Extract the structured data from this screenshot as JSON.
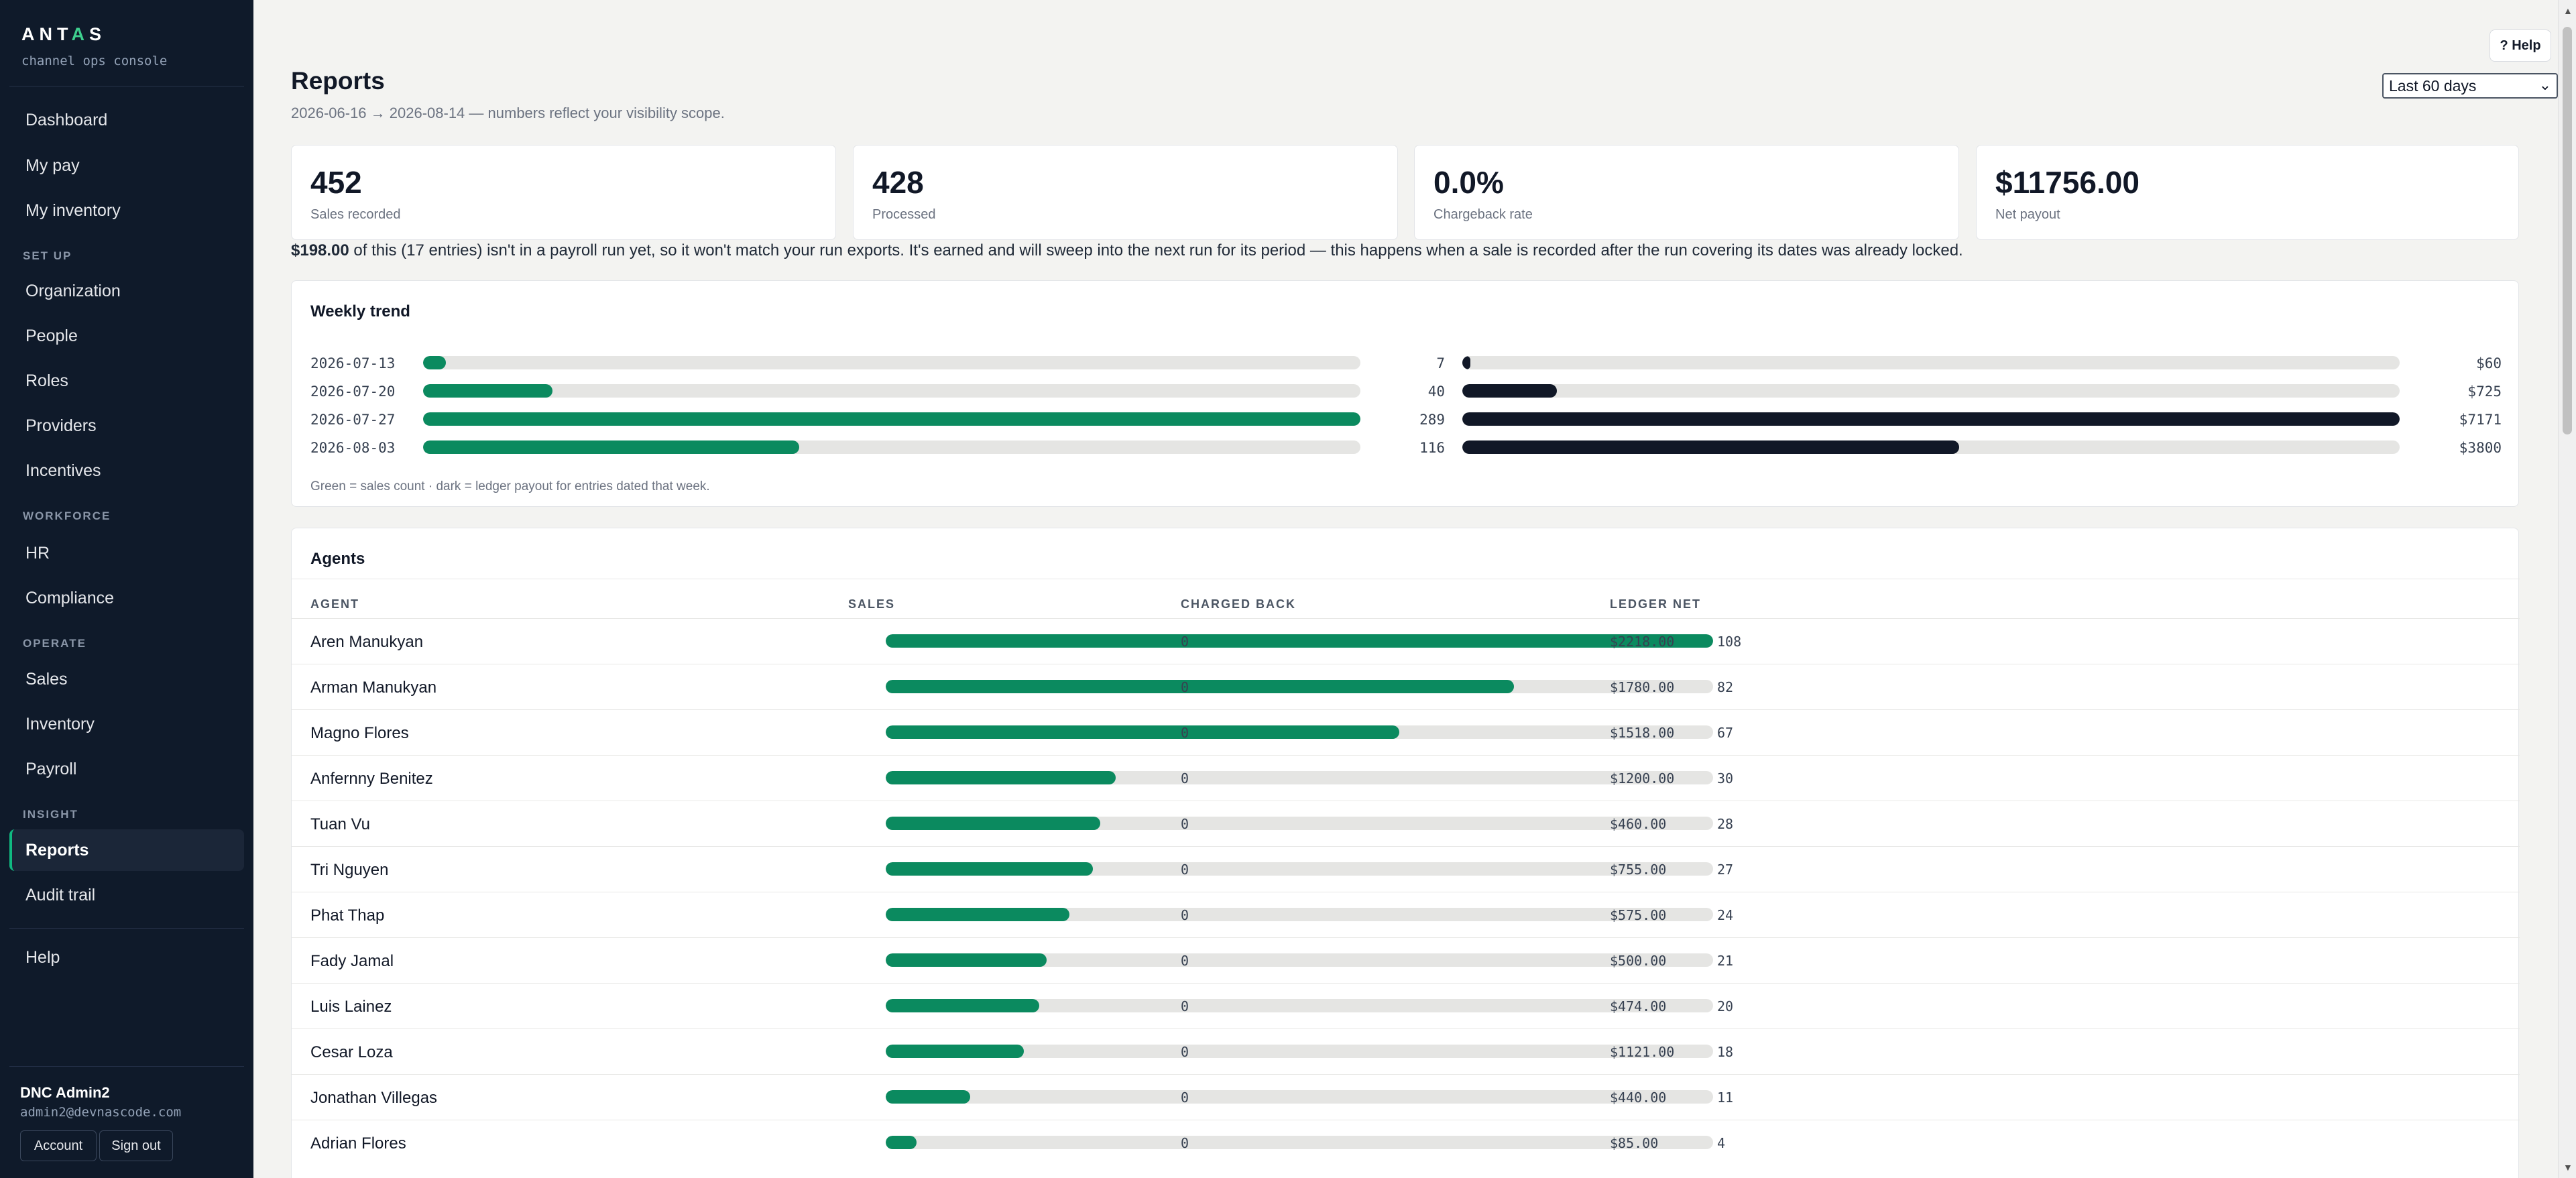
{
  "app": {
    "logo_pre": "ANT",
    "logo_accent": "A",
    "logo_post": "S",
    "subtitle": "channel ops console"
  },
  "sidebar": {
    "top_items": [
      {
        "label": "Dashboard"
      },
      {
        "label": "My pay"
      },
      {
        "label": "My inventory"
      }
    ],
    "sections": [
      {
        "title": "SET UP",
        "items": [
          "Organization",
          "People",
          "Roles",
          "Providers",
          "Incentives"
        ]
      },
      {
        "title": "WORKFORCE",
        "items": [
          "HR",
          "Compliance"
        ]
      },
      {
        "title": "OPERATE",
        "items": [
          "Sales",
          "Inventory",
          "Payroll"
        ]
      },
      {
        "title": "INSIGHT",
        "items": [
          "Reports",
          "Audit trail"
        ]
      }
    ],
    "active_item": "Reports",
    "help": "Help",
    "user": {
      "name": "DNC Admin2",
      "email": "admin2@devnascode.com"
    },
    "account_button": "Account",
    "signout_button": "Sign out"
  },
  "header": {
    "help_button": "? Help",
    "title": "Reports",
    "subtitle": "2026-06-16 → 2026-08-14 — numbers reflect your visibility scope.",
    "range_select": "Last 60 days"
  },
  "kpis": [
    {
      "value": "452",
      "label": "Sales recorded"
    },
    {
      "value": "428",
      "label": "Processed"
    },
    {
      "value": "0.0%",
      "label": "Chargeback rate"
    },
    {
      "value": "$11756.00",
      "label": "Net payout"
    }
  ],
  "notice": {
    "amount": "$198.00",
    "text": " of this (17 entries) isn't in a payroll run yet, so it won't match your run exports. It's earned and will sweep into the next run for its period — this happens when a sale is recorded after the run covering its dates was already locked."
  },
  "weekly_trend": {
    "title": "Weekly trend",
    "footnote": "Green = sales count · dark = ledger payout for entries dated that week.",
    "rows": [
      {
        "week": "2026-07-13",
        "sales": 7,
        "payout": 60,
        "payout_label": "$60"
      },
      {
        "week": "2026-07-20",
        "sales": 40,
        "payout": 725,
        "payout_label": "$725"
      },
      {
        "week": "2026-07-27",
        "sales": 289,
        "payout": 7171,
        "payout_label": "$7171"
      },
      {
        "week": "2026-08-03",
        "sales": 116,
        "payout": 3800,
        "payout_label": "$3800"
      }
    ],
    "max_sales": 289,
    "max_payout": 7171
  },
  "agents": {
    "title": "Agents",
    "columns": [
      "AGENT",
      "SALES",
      "CHARGED BACK",
      "LEDGER NET"
    ],
    "max_sales": 108,
    "rows": [
      {
        "name": "Aren Manukyan",
        "sales": 108,
        "charged_back": "0",
        "net": "$2218.00"
      },
      {
        "name": "Arman Manukyan",
        "sales": 82,
        "charged_back": "0",
        "net": "$1780.00"
      },
      {
        "name": "Magno Flores",
        "sales": 67,
        "charged_back": "0",
        "net": "$1518.00"
      },
      {
        "name": "Anfernny Benitez",
        "sales": 30,
        "charged_back": "0",
        "net": "$1200.00"
      },
      {
        "name": "Tuan Vu",
        "sales": 28,
        "charged_back": "0",
        "net": "$460.00"
      },
      {
        "name": "Tri Nguyen",
        "sales": 27,
        "charged_back": "0",
        "net": "$755.00"
      },
      {
        "name": "Phat Thap",
        "sales": 24,
        "charged_back": "0",
        "net": "$575.00"
      },
      {
        "name": "Fady Jamal",
        "sales": 21,
        "charged_back": "0",
        "net": "$500.00"
      },
      {
        "name": "Luis Lainez",
        "sales": 20,
        "charged_back": "0",
        "net": "$474.00"
      },
      {
        "name": "Cesar Loza",
        "sales": 18,
        "charged_back": "0",
        "net": "$1121.00"
      },
      {
        "name": "Jonathan Villegas",
        "sales": 11,
        "charged_back": "0",
        "net": "$440.00"
      },
      {
        "name": "Adrian Flores",
        "sales": 4,
        "charged_back": "0",
        "net": "$85.00"
      }
    ]
  },
  "colors": {
    "accent_green": "#0b8a5f",
    "dark_bar": "#111827",
    "sidebar_bg": "#0f1a2a"
  }
}
